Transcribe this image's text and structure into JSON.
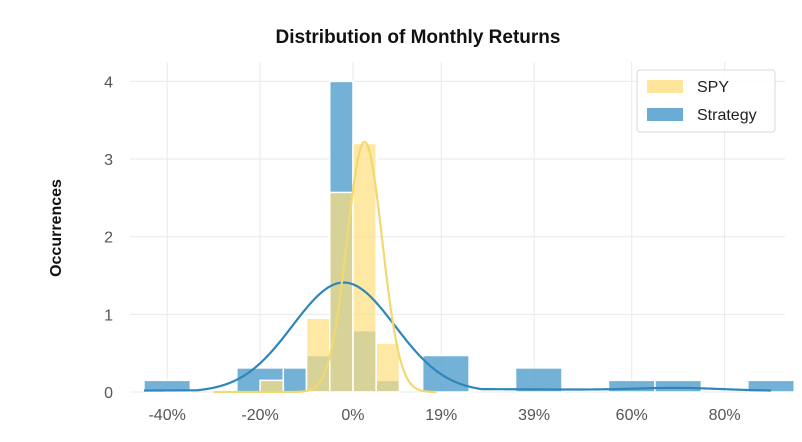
{
  "chart_data": {
    "type": "histogram",
    "title": "Distribution of Monthly Returns",
    "ylabel": "Occurrences",
    "xlabel": "",
    "x_tick_labels": [
      {
        "value": -0.4,
        "label": "-40%"
      },
      {
        "value": -0.2,
        "label": "-20%"
      },
      {
        "value": 0.0,
        "label": "0%"
      },
      {
        "value": 0.19,
        "label": "19%"
      },
      {
        "value": 0.39,
        "label": "39%"
      },
      {
        "value": 0.6,
        "label": "60%"
      },
      {
        "value": 0.8,
        "label": "80%"
      }
    ],
    "y_ticks": [
      0,
      1,
      2,
      3,
      4
    ],
    "xlim": [
      -0.48,
      0.93
    ],
    "ylim": [
      0,
      4.25
    ],
    "grid": true,
    "legend_position": "top-right",
    "series": [
      {
        "name": "Strategy",
        "color": "#5ba3cf",
        "kde_color": "#2f86b8",
        "bins": [
          {
            "x0": -0.45,
            "x1": -0.35,
            "count": 0.15
          },
          {
            "x0": -0.25,
            "x1": -0.15,
            "count": 0.31
          },
          {
            "x0": -0.15,
            "x1": -0.1,
            "count": 0.31
          },
          {
            "x0": -0.1,
            "x1": -0.05,
            "count": 0.47
          },
          {
            "x0": -0.05,
            "x1": 0.0,
            "count": 4.0
          },
          {
            "x0": 0.0,
            "x1": 0.05,
            "count": 0.79
          },
          {
            "x0": 0.05,
            "x1": 0.1,
            "count": 0.15
          },
          {
            "x0": 0.15,
            "x1": 0.25,
            "count": 0.47
          },
          {
            "x0": 0.35,
            "x1": 0.45,
            "count": 0.31
          },
          {
            "x0": 0.55,
            "x1": 0.65,
            "count": 0.15
          },
          {
            "x0": 0.65,
            "x1": 0.75,
            "count": 0.15
          },
          {
            "x0": 0.85,
            "x1": 0.95,
            "count": 0.15
          }
        ],
        "kde": {
          "mean": -0.02,
          "sd": 0.11,
          "peak": 1.41,
          "tail_level": 0.04,
          "bumps": [
            {
              "x": 0.7,
              "sd": 0.09,
              "height": 0.03
            }
          ]
        }
      },
      {
        "name": "SPY",
        "color": "#fedf7f",
        "kde_color": "#f2d870",
        "bins": [
          {
            "x0": -0.2,
            "x1": -0.15,
            "count": 0.15
          },
          {
            "x0": -0.1,
            "x1": -0.05,
            "count": 0.95
          },
          {
            "x0": -0.05,
            "x1": 0.0,
            "count": 2.57
          },
          {
            "x0": 0.0,
            "x1": 0.05,
            "count": 3.2
          },
          {
            "x0": 0.05,
            "x1": 0.1,
            "count": 0.63
          },
          {
            "x0": 0.1,
            "x1": 0.15,
            "count": 0.0
          }
        ],
        "kde": {
          "mean": 0.025,
          "sd": 0.038,
          "peak": 3.22,
          "range": [
            -0.3,
            0.18
          ]
        }
      }
    ]
  }
}
